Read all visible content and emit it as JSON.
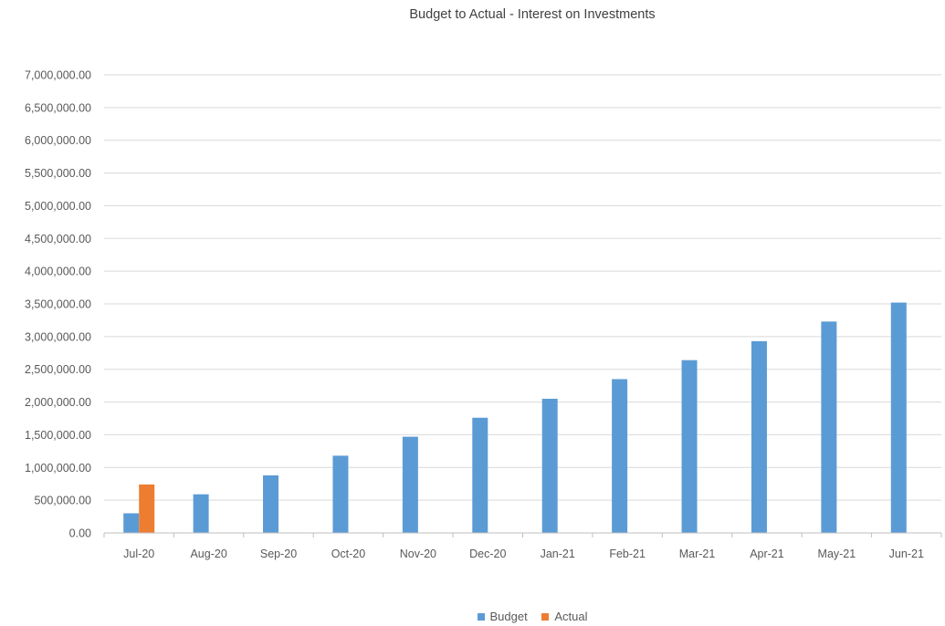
{
  "chart_data": {
    "type": "bar",
    "title": "Budget to Actual - Interest on Investments",
    "categories": [
      "Jul-20",
      "Aug-20",
      "Sep-20",
      "Oct-20",
      "Nov-20",
      "Dec-20",
      "Jan-21",
      "Feb-21",
      "Mar-21",
      "Apr-21",
      "May-21",
      "Jun-21"
    ],
    "series": [
      {
        "name": "Budget",
        "color": "#5B9BD5",
        "values": [
          300000,
          590000,
          880000,
          1180000,
          1470000,
          1760000,
          2050000,
          2350000,
          2640000,
          2930000,
          3230000,
          3520000
        ]
      },
      {
        "name": "Actual",
        "color": "#ED7D31",
        "values": [
          740000,
          null,
          null,
          null,
          null,
          null,
          null,
          null,
          null,
          null,
          null,
          null
        ]
      }
    ],
    "y_ticks": [
      "0.00",
      "500,000.00",
      "1,000,000.00",
      "1,500,000.00",
      "2,000,000.00",
      "2,500,000.00",
      "3,000,000.00",
      "3,500,000.00",
      "4,000,000.00",
      "4,500,000.00",
      "5,000,000.00",
      "5,500,000.00",
      "6,000,000.00",
      "6,500,000.00",
      "7,000,000.00"
    ],
    "ylim": [
      0,
      7000000
    ],
    "ystep": 500000,
    "grid": true,
    "legend_position": "bottom"
  }
}
